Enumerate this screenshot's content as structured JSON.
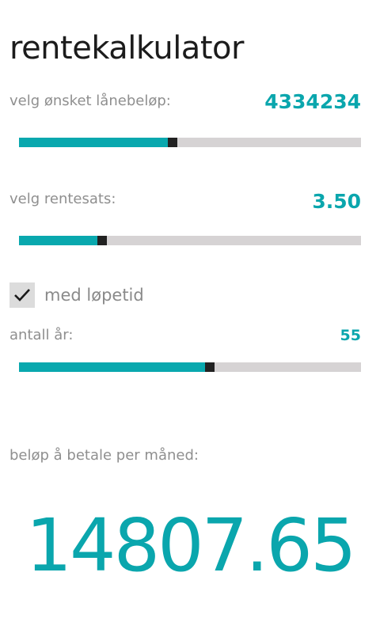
{
  "app": {
    "title": "rentekalkulator"
  },
  "loan": {
    "label": "velg ønsket lånebeløp:",
    "value": "4334234",
    "slider_fraction": 0.435
  },
  "rate": {
    "label": "velg rentesats:",
    "value": "3.50",
    "slider_fraction": 0.23
  },
  "term_toggle": {
    "label": "med løpetid",
    "checked": true
  },
  "years": {
    "label": "antall år:",
    "value": "55",
    "slider_fraction": 0.545
  },
  "result": {
    "label": "beløp å betale per måned:",
    "value": "14807.65"
  },
  "colors": {
    "accent": "#0aa6ad",
    "track": "#d6d3d4",
    "thumb": "#222222"
  }
}
